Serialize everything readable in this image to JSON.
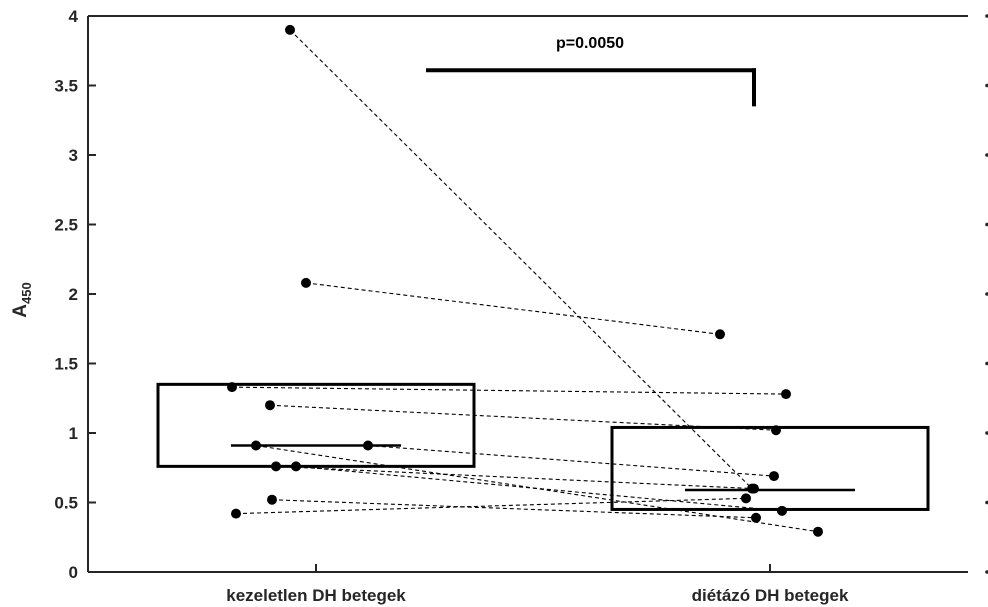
{
  "chart_data": {
    "type": "scatter",
    "ylabel": "A",
    "ylabel_subscript": "450",
    "ylim": [
      0,
      4
    ],
    "yticks": [
      {
        "value": 0,
        "label": "0"
      },
      {
        "value": 0.5,
        "label": "0.5"
      },
      {
        "value": 1,
        "label": "1"
      },
      {
        "value": 1.5,
        "label": "1.5"
      },
      {
        "value": 2,
        "label": "2"
      },
      {
        "value": 2.5,
        "label": "2.5"
      },
      {
        "value": 3,
        "label": "3"
      },
      {
        "value": 3.5,
        "label": "3.5"
      },
      {
        "value": 4,
        "label": "4"
      }
    ],
    "categories": [
      "kezeletlen DH betegek",
      "diétázó DH betegek"
    ],
    "annotation": "p=0.0050",
    "groups": [
      {
        "category": "kezeletlen DH betegek",
        "box": {
          "q1": 0.76,
          "q3": 1.35,
          "median": 0.91
        },
        "points": [
          {
            "jitter": -0.13,
            "y": 3.9
          },
          {
            "jitter": -0.05,
            "y": 2.08
          },
          {
            "jitter": -0.42,
            "y": 1.33
          },
          {
            "jitter": -0.23,
            "y": 1.2
          },
          {
            "jitter": -0.3,
            "y": 0.91
          },
          {
            "jitter": 0.26,
            "y": 0.91
          },
          {
            "jitter": -0.2,
            "y": 0.76
          },
          {
            "jitter": -0.1,
            "y": 0.76
          },
          {
            "jitter": -0.22,
            "y": 0.52
          },
          {
            "jitter": -0.4,
            "y": 0.42
          }
        ]
      },
      {
        "category": "diétázó DH betegek",
        "box": {
          "q1": 0.45,
          "q3": 1.04,
          "median": 0.59
        },
        "points": [
          {
            "jitter": -0.25,
            "y": 1.71
          },
          {
            "jitter": 0.08,
            "y": 1.28
          },
          {
            "jitter": 0.03,
            "y": 1.02
          },
          {
            "jitter": -0.08,
            "y": 0.6
          },
          {
            "jitter": 0.02,
            "y": 0.69
          },
          {
            "jitter": -0.09,
            "y": 0.6
          },
          {
            "jitter": -0.12,
            "y": 0.53
          },
          {
            "jitter": -0.07,
            "y": 0.39
          },
          {
            "jitter": 0.06,
            "y": 0.44
          },
          {
            "jitter": 0.24,
            "y": 0.29
          }
        ]
      }
    ],
    "pairs": [
      [
        0,
        5
      ],
      [
        1,
        0
      ],
      [
        2,
        1
      ],
      [
        3,
        2
      ],
      [
        4,
        9
      ],
      [
        5,
        4
      ],
      [
        6,
        3
      ],
      [
        7,
        8
      ],
      [
        8,
        7
      ],
      [
        9,
        6
      ]
    ]
  }
}
